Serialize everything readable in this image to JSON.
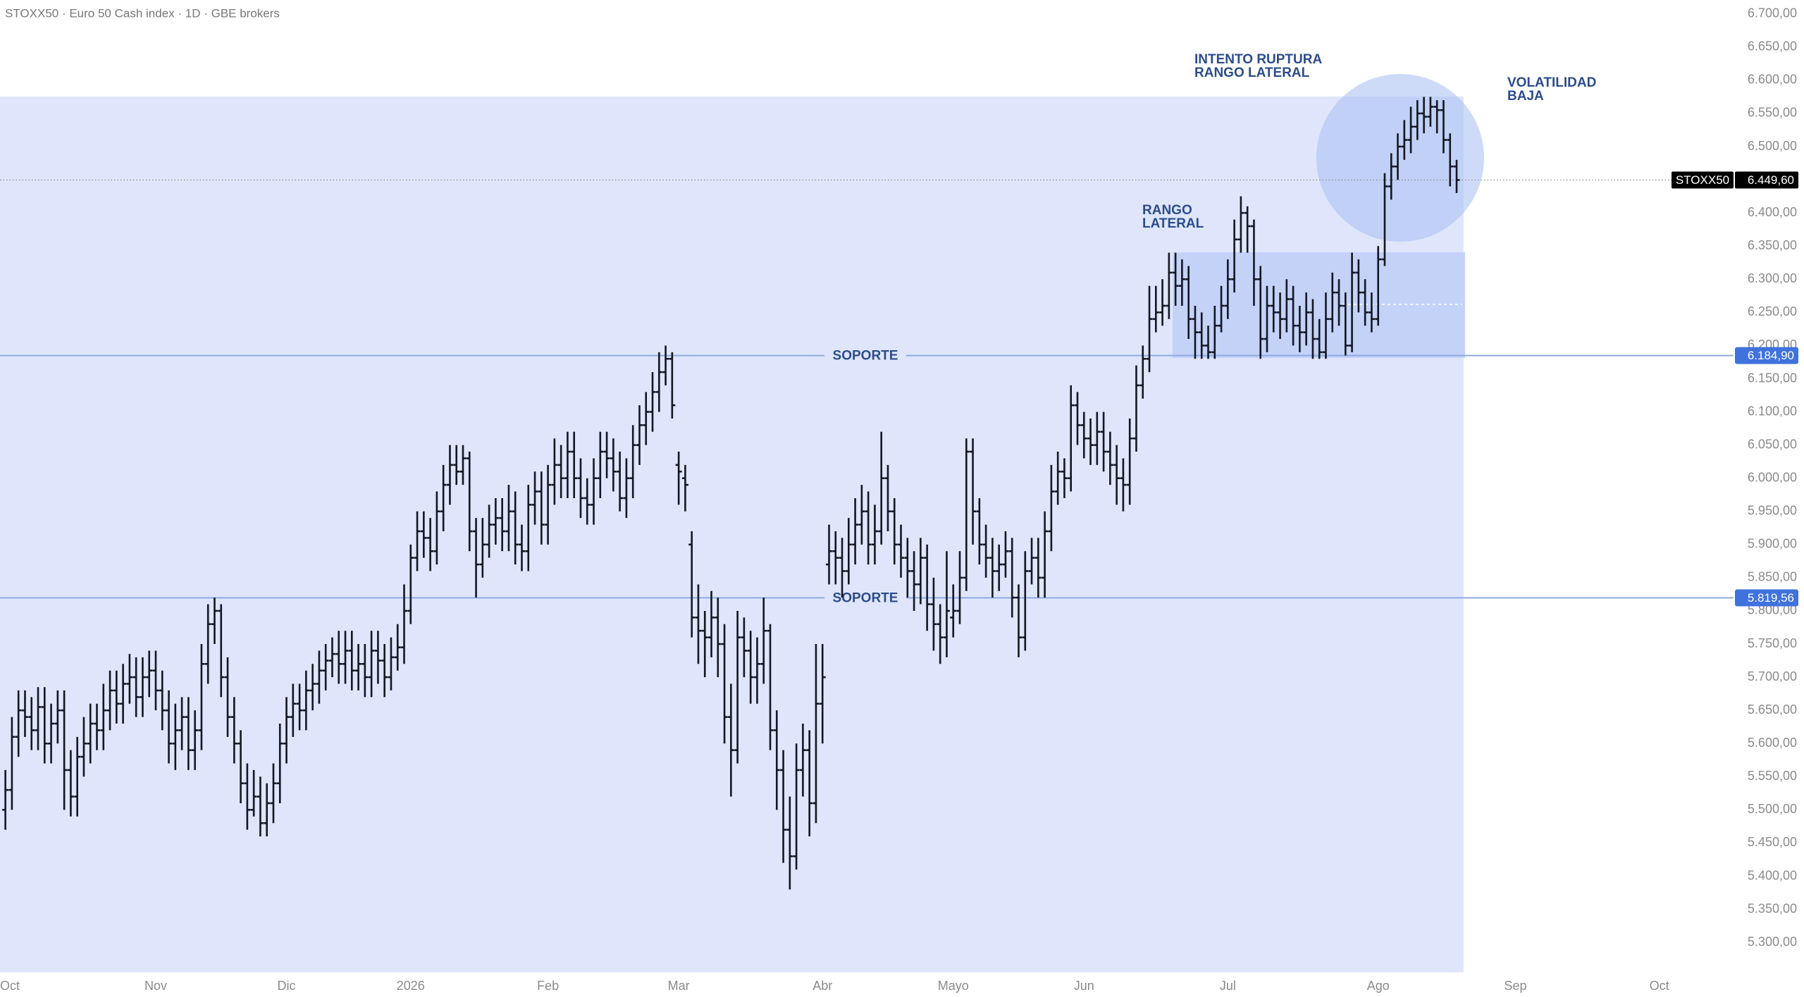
{
  "chart_data": {
    "type": "ohlc",
    "title": "STOXX50 · Euro 50 Cash index · 1D · GBE brokers",
    "annotations": [
      [
        "INTENTO RUPTURA",
        "RANGO LATERAL"
      ],
      [
        "RANGO",
        "LATERAL"
      ],
      [
        "VOLATILIDAD",
        "BAJA"
      ]
    ],
    "color": "#131722",
    "categories": [
      "Oct",
      null,
      null,
      null,
      null,
      null,
      null,
      null,
      null,
      null,
      null,
      null,
      null,
      null,
      null,
      null,
      null,
      null,
      null,
      null,
      null,
      null,
      null,
      "Nov",
      null,
      null,
      null,
      null,
      null,
      null,
      null,
      null,
      null,
      null,
      null,
      null,
      null,
      null,
      null,
      null,
      null,
      null,
      null,
      "Dic",
      null,
      null,
      null,
      null,
      null,
      null,
      null,
      null,
      null,
      null,
      null,
      null,
      null,
      null,
      null,
      null,
      null,
      null,
      "2026",
      null,
      null,
      null,
      null,
      null,
      null,
      null,
      null,
      null,
      null,
      null,
      null,
      null,
      null,
      null,
      null,
      null,
      null,
      null,
      null,
      "Feb",
      null,
      null,
      null,
      null,
      null,
      null,
      null,
      null,
      null,
      null,
      null,
      null,
      null,
      null,
      null,
      null,
      null,
      null,
      null,
      "Mar",
      null,
      null,
      null,
      null,
      null,
      null,
      null,
      null,
      null,
      null,
      null,
      null,
      null,
      null,
      null,
      null,
      null,
      null,
      null,
      null,
      null,
      "Abr",
      null,
      null,
      null,
      null,
      null,
      null,
      null,
      null,
      null,
      null,
      null,
      null,
      null,
      null,
      null,
      null,
      null,
      null,
      null,
      "Mayo",
      null,
      null,
      null,
      null,
      null,
      null,
      null,
      null,
      null,
      null,
      null,
      null,
      null,
      null,
      null,
      null,
      null,
      null,
      null,
      "Jun",
      null,
      null,
      null,
      null,
      null,
      null,
      null,
      null,
      null,
      null,
      null,
      null,
      null,
      null,
      null,
      null,
      null,
      null,
      null,
      null,
      null,
      "Jul",
      null,
      null,
      null,
      null,
      null,
      null,
      null,
      null,
      null,
      null,
      null,
      null,
      null,
      null,
      null,
      null,
      null,
      null,
      null,
      null,
      null,
      null,
      "Ago",
      null,
      null,
      null,
      null,
      null,
      null,
      null,
      null,
      null,
      null,
      null,
      null,
      null,
      null,
      null,
      null,
      null,
      null,
      null,
      null,
      "Sep",
      null,
      null,
      null,
      null,
      null,
      null,
      null,
      null,
      null,
      null,
      null,
      null,
      null,
      null,
      null,
      null,
      null,
      null,
      null,
      null,
      null,
      "Oct",
      null,
      null,
      null,
      null,
      null,
      null,
      null,
      null,
      null,
      null
    ],
    "open": [
      5500,
      5530,
      5610,
      5650,
      5640,
      5620,
      5655,
      5600,
      5630,
      5650,
      5560,
      5520,
      5580,
      5600,
      5630,
      5620,
      5650,
      5680,
      5660,
      5690,
      5700,
      5670,
      5700,
      5710,
      5680,
      5650,
      5600,
      5620,
      5640,
      5590,
      5620,
      5720,
      5780,
      5800,
      5700,
      5640,
      5600,
      5540,
      5500,
      5520,
      5480,
      5510,
      5540,
      5600,
      5640,
      5660,
      5650,
      5680,
      5690,
      5710,
      5725,
      5735,
      5720,
      5740,
      5710,
      5720,
      5700,
      5740,
      5725,
      5700,
      5730,
      5745,
      5800,
      5880,
      5920,
      5910,
      5890,
      5950,
      5990,
      6020,
      6010,
      6030,
      5920,
      5870,
      5900,
      5930,
      5940,
      5920,
      5950,
      5900,
      5890,
      5960,
      5980,
      5930,
      5990,
      6020,
      6000,
      6040,
      6000,
      5970,
      5960,
      6000,
      6040,
      6030,
      6010,
      5970,
      6000,
      6050,
      6080,
      6100,
      6130,
      6160,
      6180,
      6020,
      6000,
      5900,
      5790,
      5770,
      5760,
      5790,
      5750,
      5640,
      5590,
      5760,
      5740,
      5700,
      5720,
      5770,
      5620,
      5560,
      5470,
      5430,
      5560,
      5590,
      5510,
      5660,
      5870,
      5890,
      5880,
      5860,
      5900,
      5930,
      5950,
      5900,
      5920,
      6000,
      5950,
      5900,
      5880,
      5860,
      5840,
      5880,
      5810,
      5780,
      5760,
      5790,
      5800,
      5850,
      6040,
      5950,
      5900,
      5880,
      5860,
      5870,
      5890,
      5820,
      5760,
      5860,
      5880,
      5850,
      5920,
      5980,
      6010,
      6000,
      6110,
      6080,
      6060,
      6050,
      6070,
      6040,
      6020,
      6000,
      5990,
      6060,
      6140,
      6180,
      6240,
      6250,
      6260,
      6310,
      6290,
      6300,
      6240,
      6220,
      6200,
      6190,
      6230,
      6260,
      6300,
      6360,
      6400,
      6380,
      6300,
      6210,
      6260,
      6250,
      6240,
      6270,
      6230,
      6220,
      6250,
      6210,
      6190,
      6240,
      6280,
      6260,
      6200,
      6310,
      6280,
      6250,
      6240,
      6330,
      6440,
      6470,
      6500,
      6510,
      6530,
      6550,
      6545,
      6560,
      6555,
      6510,
      6470,
      null,
      null,
      null,
      null,
      null,
      null,
      null,
      null,
      null,
      null,
      null,
      null,
      null,
      null,
      null,
      null,
      null,
      null,
      null,
      null,
      null,
      null,
      null,
      null,
      null,
      null,
      null,
      null,
      null,
      null,
      null,
      null,
      null,
      null,
      null,
      null,
      null,
      null,
      null,
      null,
      null
    ],
    "high": [
      5560,
      5640,
      5680,
      5680,
      5670,
      5685,
      5685,
      5660,
      5680,
      5680,
      5590,
      5610,
      5640,
      5660,
      5660,
      5690,
      5710,
      5710,
      5720,
      5735,
      5730,
      5730,
      5740,
      5740,
      5710,
      5680,
      5660,
      5670,
      5670,
      5650,
      5750,
      5810,
      5820,
      5810,
      5730,
      5670,
      5620,
      5570,
      5560,
      5550,
      5540,
      5570,
      5630,
      5670,
      5690,
      5690,
      5710,
      5720,
      5740,
      5750,
      5760,
      5770,
      5770,
      5770,
      5750,
      5750,
      5770,
      5770,
      5750,
      5760,
      5780,
      5840,
      5900,
      5950,
      5950,
      5940,
      5980,
      6020,
      6050,
      6050,
      6050,
      6040,
      5940,
      5940,
      5960,
      5970,
      5970,
      5990,
      5980,
      5930,
      5990,
      6010,
      6010,
      6020,
      6060,
      6050,
      6070,
      6070,
      6030,
      6000,
      6030,
      6070,
      6070,
      6060,
      6040,
      6030,
      6080,
      6110,
      6130,
      6160,
      6190,
      6200,
      6190,
      6040,
      6020,
      5920,
      5840,
      5800,
      5830,
      5820,
      5780,
      5690,
      5800,
      5790,
      5770,
      5760,
      5820,
      5780,
      5650,
      5590,
      5520,
      5600,
      5630,
      5620,
      5750,
      5750,
      5930,
      5920,
      5910,
      5940,
      5970,
      5990,
      5980,
      5960,
      6070,
      6020,
      5970,
      5930,
      5910,
      5890,
      5910,
      5900,
      5850,
      5810,
      5890,
      5840,
      5890,
      6060,
      6060,
      5970,
      5930,
      5910,
      5900,
      5920,
      5910,
      5840,
      5890,
      5910,
      5910,
      5950,
      6020,
      6040,
      6030,
      6140,
      6130,
      6100,
      6090,
      6100,
      6100,
      6070,
      6050,
      6030,
      6090,
      6170,
      6200,
      6290,
      6290,
      6300,
      6340,
      6340,
      6330,
      6320,
      6260,
      6250,
      6230,
      6260,
      6290,
      6330,
      6390,
      6425,
      6410,
      6390,
      6320,
      6290,
      6290,
      6280,
      6300,
      6290,
      6260,
      6280,
      6270,
      6240,
      6280,
      6310,
      6300,
      6280,
      6340,
      6330,
      6300,
      6280,
      6350,
      6460,
      6490,
      6520,
      6540,
      6560,
      6570,
      6575,
      6575,
      6570,
      6570,
      6520,
      6480,
      null,
      null,
      null,
      null,
      null,
      null,
      null,
      null,
      null,
      null,
      null,
      null,
      null,
      null,
      null,
      null,
      null,
      null,
      null,
      null,
      null,
      null,
      null,
      null,
      null,
      null,
      null,
      null,
      null,
      null,
      null,
      null,
      null,
      null,
      null,
      null,
      null,
      null,
      null,
      null,
      null
    ],
    "low": [
      5470,
      5500,
      5580,
      5610,
      5590,
      5590,
      5570,
      5570,
      5600,
      5500,
      5490,
      5490,
      5550,
      5570,
      5590,
      5590,
      5620,
      5630,
      5630,
      5660,
      5640,
      5640,
      5670,
      5650,
      5620,
      5570,
      5560,
      5590,
      5560,
      5560,
      5590,
      5690,
      5750,
      5670,
      5610,
      5570,
      5510,
      5470,
      5490,
      5460,
      5460,
      5480,
      5510,
      5570,
      5610,
      5620,
      5620,
      5650,
      5660,
      5680,
      5700,
      5690,
      5690,
      5680,
      5680,
      5670,
      5670,
      5690,
      5670,
      5680,
      5710,
      5720,
      5780,
      5860,
      5880,
      5860,
      5870,
      5920,
      5960,
      5990,
      5990,
      5890,
      5820,
      5850,
      5880,
      5900,
      5890,
      5890,
      5870,
      5860,
      5860,
      5930,
      5900,
      5900,
      5960,
      5970,
      5970,
      5970,
      5940,
      5930,
      5930,
      5970,
      6000,
      5980,
      5950,
      5940,
      5970,
      6020,
      6050,
      6070,
      6100,
      6140,
      6090,
      5960,
      5950,
      5760,
      5720,
      5700,
      5730,
      5700,
      5600,
      5520,
      5570,
      5700,
      5660,
      5660,
      5690,
      5590,
      5500,
      5420,
      5380,
      5410,
      5520,
      5460,
      5480,
      5600,
      5840,
      5840,
      5820,
      5840,
      5870,
      5900,
      5870,
      5870,
      5900,
      5920,
      5870,
      5850,
      5820,
      5800,
      5810,
      5770,
      5740,
      5720,
      5730,
      5760,
      5780,
      5830,
      5900,
      5870,
      5850,
      5820,
      5830,
      5850,
      5790,
      5730,
      5740,
      5840,
      5820,
      5820,
      5890,
      5960,
      5970,
      5980,
      6050,
      6030,
      6020,
      6020,
      6010,
      5990,
      5960,
      5950,
      5960,
      6040,
      6120,
      6160,
      6220,
      6230,
      6240,
      6260,
      6260,
      6210,
      6180,
      6180,
      6180,
      6180,
      6220,
      6240,
      6280,
      6340,
      6340,
      6260,
      6180,
      6190,
      6220,
      6210,
      6220,
      6200,
      6190,
      6200,
      6180,
      6180,
      6180,
      6220,
      6230,
      6185,
      6190,
      6250,
      6230,
      6220,
      6230,
      6320,
      6420,
      6450,
      6480,
      6490,
      6510,
      6520,
      6530,
      6520,
      6490,
      6440,
      6430,
      null,
      null,
      null,
      null,
      null,
      null,
      null,
      null,
      null,
      null,
      null,
      null,
      null,
      null,
      null,
      null,
      null,
      null,
      null,
      null,
      null,
      null,
      null,
      null,
      null,
      null,
      null,
      null,
      null,
      null,
      null,
      null,
      null,
      null,
      null,
      null,
      null,
      null,
      null,
      null,
      null
    ],
    "close": [
      5530,
      5610,
      5650,
      5640,
      5620,
      5655,
      5600,
      5630,
      5650,
      5560,
      5520,
      5580,
      5600,
      5630,
      5620,
      5650,
      5680,
      5660,
      5690,
      5700,
      5670,
      5700,
      5710,
      5680,
      5650,
      5600,
      5620,
      5640,
      5590,
      5620,
      5720,
      5780,
      5800,
      5700,
      5640,
      5600,
      5540,
      5500,
      5520,
      5480,
      5510,
      5540,
      5600,
      5640,
      5660,
      5650,
      5680,
      5690,
      5710,
      5725,
      5735,
      5720,
      5740,
      5710,
      5720,
      5700,
      5740,
      5725,
      5700,
      5730,
      5745,
      5800,
      5880,
      5920,
      5910,
      5890,
      5950,
      5990,
      6020,
      6010,
      6030,
      5920,
      5870,
      5900,
      5930,
      5940,
      5920,
      5950,
      5900,
      5890,
      5960,
      5980,
      5930,
      5990,
      6020,
      6000,
      6040,
      6000,
      5970,
      5960,
      6000,
      6040,
      6030,
      6010,
      5970,
      6000,
      6050,
      6080,
      6100,
      6130,
      6160,
      6180,
      6110,
      6010,
      5990,
      5790,
      5770,
      5760,
      5790,
      5750,
      5640,
      5590,
      5760,
      5740,
      5700,
      5720,
      5770,
      5620,
      5560,
      5470,
      5430,
      5560,
      5590,
      5510,
      5660,
      5700,
      5890,
      5880,
      5860,
      5900,
      5930,
      5950,
      5900,
      5920,
      6000,
      5950,
      5900,
      5880,
      5860,
      5840,
      5880,
      5810,
      5780,
      5760,
      5800,
      5800,
      5850,
      6040,
      5950,
      5900,
      5880,
      5860,
      5870,
      5890,
      5820,
      5760,
      5860,
      5880,
      5850,
      5920,
      5980,
      6010,
      6000,
      6110,
      6080,
      6060,
      6050,
      6070,
      6040,
      6020,
      6000,
      5990,
      6060,
      6140,
      6180,
      6240,
      6250,
      6260,
      6310,
      6290,
      6300,
      6240,
      6220,
      6200,
      6190,
      6230,
      6260,
      6300,
      6360,
      6400,
      6380,
      6300,
      6210,
      6260,
      6250,
      6240,
      6270,
      6230,
      6220,
      6250,
      6210,
      6190,
      6240,
      6280,
      6260,
      6200,
      6310,
      6280,
      6250,
      6240,
      6330,
      6440,
      6470,
      6500,
      6510,
      6530,
      6550,
      6545,
      6560,
      6555,
      6510,
      6470,
      6449.6,
      null,
      null,
      null,
      null,
      null,
      null,
      null,
      null,
      null,
      null,
      null,
      null,
      null,
      null,
      null,
      null,
      null,
      null,
      null,
      null,
      null,
      null,
      null,
      null,
      null,
      null,
      null,
      null,
      null,
      null,
      null,
      null,
      null,
      null,
      null,
      null,
      null,
      null,
      null,
      null,
      null
    ],
    "ylim": [
      5255,
      6721
    ],
    "yticks": [
      {
        "value": 5300,
        "label": "5.300,00"
      },
      {
        "value": 5350,
        "label": "5.350,00"
      },
      {
        "value": 5400,
        "label": "5.400,00"
      },
      {
        "value": 5450,
        "label": "5.450,00"
      },
      {
        "value": 5500,
        "label": "5.500,00"
      },
      {
        "value": 5550,
        "label": "5.550,00"
      },
      {
        "value": 5600,
        "label": "5.600,00"
      },
      {
        "value": 5650,
        "label": "5.650,00"
      },
      {
        "value": 5700,
        "label": "5.700,00"
      },
      {
        "value": 5750,
        "label": "5.750,00"
      },
      {
        "value": 5800,
        "label": "5.800,00"
      },
      {
        "value": 5850,
        "label": "5.850,00"
      },
      {
        "value": 5900,
        "label": "5.900,00"
      },
      {
        "value": 5950,
        "label": "5.950,00"
      },
      {
        "value": 6000,
        "label": "6.000,00"
      },
      {
        "value": 6050,
        "label": "6.050,00"
      },
      {
        "value": 6100,
        "label": "6.100,00"
      },
      {
        "value": 6150,
        "label": "6.150,00"
      },
      {
        "value": 6200,
        "label": "6.200,00"
      },
      {
        "value": 6250,
        "label": "6.250,00"
      },
      {
        "value": 6300,
        "label": "6.300,00"
      },
      {
        "value": 6350,
        "label": "6.350,00"
      },
      {
        "value": 6400,
        "label": "6.400,00"
      },
      {
        "value": 6450,
        "label": "6.450,00"
      },
      {
        "value": 6500,
        "label": "6.500,00"
      },
      {
        "value": 6550,
        "label": "6.550,00"
      },
      {
        "value": 6600,
        "label": "6.600,00"
      },
      {
        "value": 6650,
        "label": "6.650,00"
      },
      {
        "value": 6700,
        "label": "6.700,00"
      }
    ],
    "levels": [
      {
        "name": "SOPORTE",
        "value": 6184.9,
        "label": "6.184,90"
      },
      {
        "name": "SOPORTE",
        "value": 5819.56,
        "label": "5.819,56"
      }
    ],
    "level_color": "#3f72dd",
    "price_tag": {
      "name": "STOXX50",
      "value": 6449.6,
      "label": "6.449,60"
    }
  }
}
